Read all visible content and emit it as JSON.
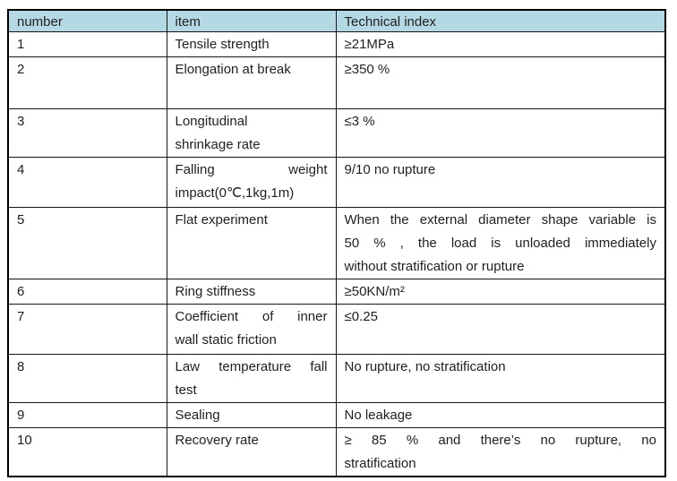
{
  "table": {
    "headers": [
      "number",
      "item",
      "Technical index"
    ],
    "colors": {
      "header_bg": "#b5d9e4",
      "border": "#161616",
      "outer_border": "#000000",
      "text": "#1f1f1f"
    },
    "rows": [
      {
        "number": "1",
        "item": [
          "Tensile strength"
        ],
        "index": [
          "≥21MPa"
        ]
      },
      {
        "number": "2",
        "item": [
          "Elongation at break"
        ],
        "index": [
          "≥350 %"
        ]
      },
      {
        "number": "3",
        "item": [
          "Longitudinal",
          "shrinkage rate"
        ],
        "index": [
          "≤3 %"
        ]
      },
      {
        "number": "4",
        "item": [
          "Falling weight",
          "impact(0℃,1kg,1m)"
        ],
        "index": [
          "9/10 no rupture"
        ]
      },
      {
        "number": "5",
        "item": [
          "Flat experiment"
        ],
        "index": [
          "When the external diameter shape variable is",
          "50 % , the load is unloaded immediately",
          "without stratification or rupture"
        ]
      },
      {
        "number": "6",
        "item": [
          "Ring stiffness"
        ],
        "index": [
          "≥50KN/m²"
        ]
      },
      {
        "number": "7",
        "item": [
          "Coefficient of inner",
          "wall static friction"
        ],
        "index": [
          "≤0.25"
        ]
      },
      {
        "number": "8",
        "item": [
          "Law temperature fall",
          "test"
        ],
        "index": [
          "No rupture, no stratification"
        ]
      },
      {
        "number": "9",
        "item": [
          "Sealing"
        ],
        "index": [
          "No leakage"
        ]
      },
      {
        "number": "10",
        "item": [
          "Recovery rate"
        ],
        "index": [
          "≥ 85 % and there’s no rupture, no",
          "stratification"
        ]
      }
    ]
  }
}
